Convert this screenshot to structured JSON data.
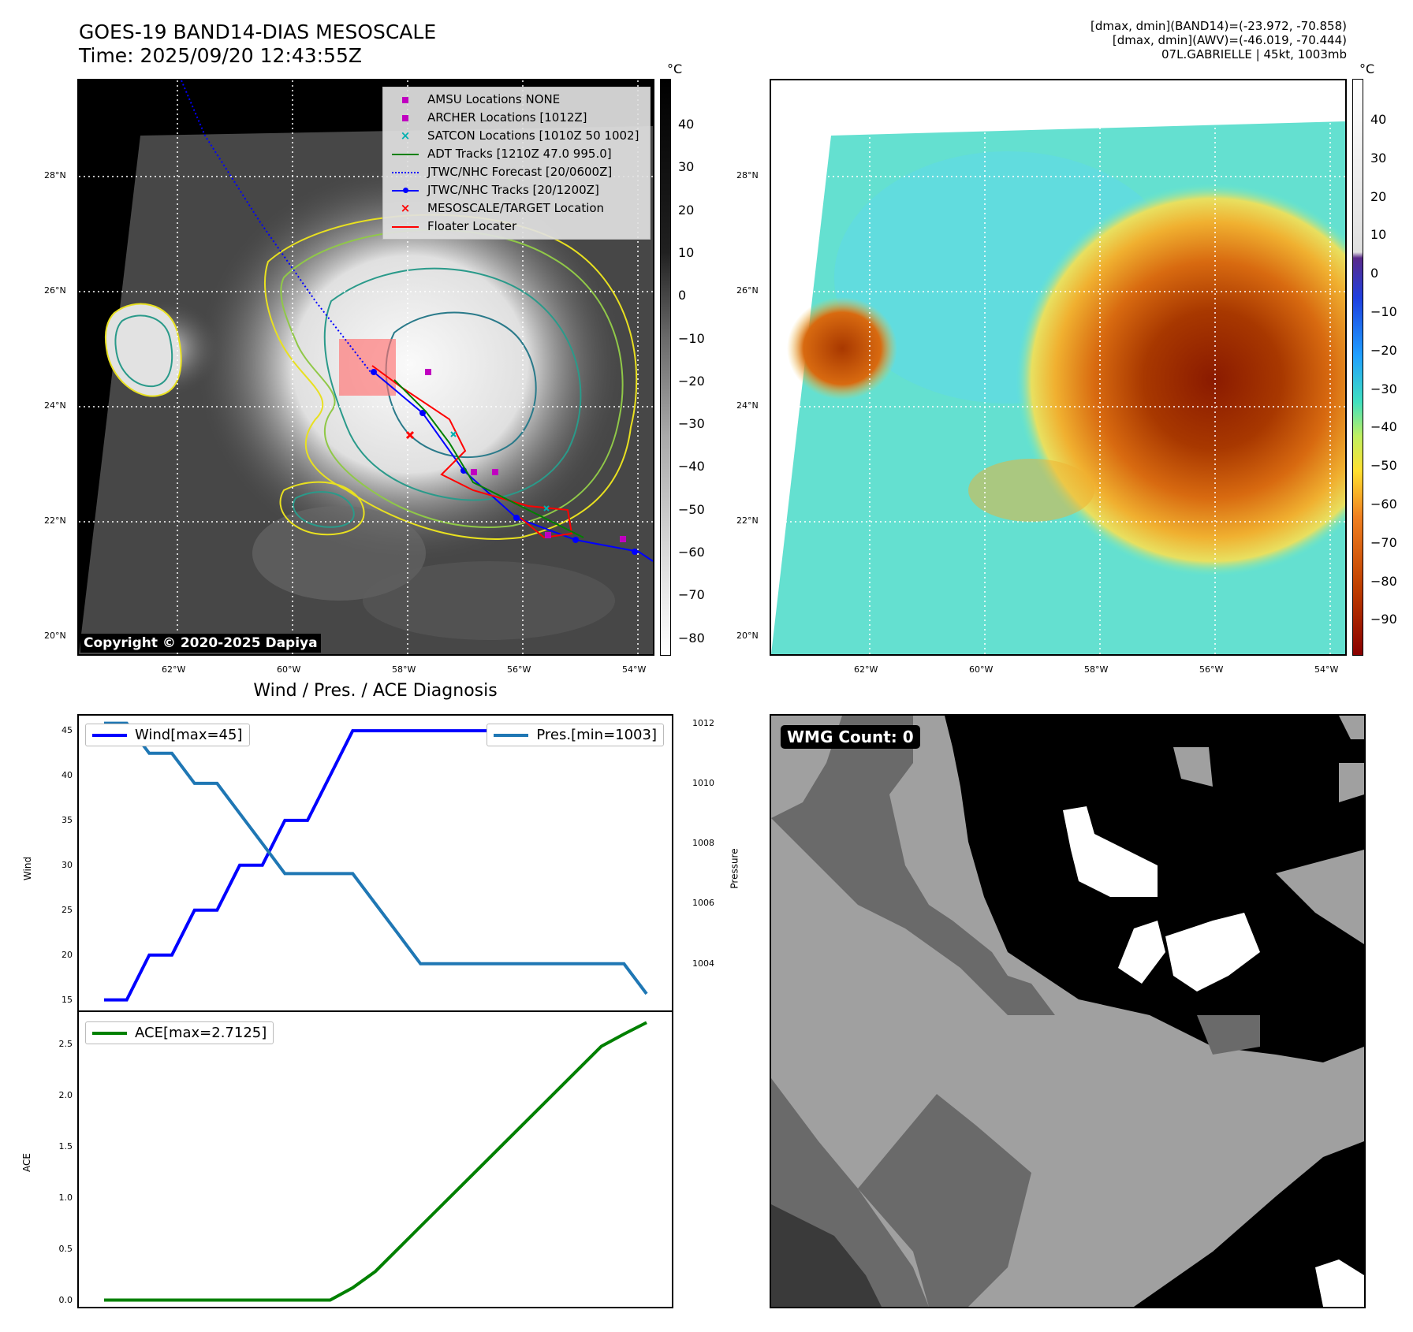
{
  "title_line1": "GOES-19 BAND14-DIAS MESOSCALE",
  "title_line2": "Time: 2025/09/20 12:43:55Z",
  "annotation": {
    "line1": "[dmax, dmin](BAND14)=(-23.972, -70.858)",
    "line2": "[dmax, dmin](AWV)=(-46.019, -70.444)",
    "line3": "07L.GABRIELLE | 45kt, 1003mb"
  },
  "colorbar_unit": "°C",
  "copyright": "Copyright © 2020-2025 Dapiya",
  "wmg_label": "WMG Count: 0",
  "diag_title": "Wind / Pres. / ACE Diagnosis",
  "map_ticks": {
    "lat": [
      "28°N",
      "26°N",
      "24°N",
      "22°N",
      "20°N"
    ],
    "lon": [
      "62°W",
      "60°W",
      "58°W",
      "56°W",
      "54°W"
    ]
  },
  "legend": [
    {
      "label": "AMSU Locations NONE",
      "symbol": "square",
      "color": "#c000c0"
    },
    {
      "label": "ARCHER Locations [1012Z]",
      "symbol": "square",
      "color": "#c000c0"
    },
    {
      "label": "SATCON Locations [1010Z 50 1002]",
      "symbol": "x",
      "color": "#00b0b0"
    },
    {
      "label": "ADT Tracks [1210Z 47.0 995.0]",
      "symbol": "line",
      "color": "#008000"
    },
    {
      "label": "JTWC/NHC Forecast [20/0600Z]",
      "symbol": "dotted",
      "color": "#0000ff"
    },
    {
      "label": "JTWC/NHC Tracks [20/1200Z]",
      "symbol": "dotline",
      "color": "#0000ff"
    },
    {
      "label": "MESOSCALE/TARGET Location",
      "symbol": "x",
      "color": "#ff0000"
    },
    {
      "label": "Floater Locater",
      "symbol": "line",
      "color": "#ff0000"
    }
  ],
  "colorbar1": {
    "ticks": [
      "40",
      "30",
      "20",
      "10",
      "0",
      "−10",
      "−20",
      "−30",
      "−40",
      "−50",
      "−60",
      "−70",
      "−80"
    ]
  },
  "colorbar2": {
    "ticks": [
      "40",
      "30",
      "20",
      "10",
      "0",
      "−10",
      "−20",
      "−30",
      "−40",
      "−50",
      "−60",
      "−70",
      "−80",
      "−90"
    ]
  },
  "chart_data": [
    {
      "type": "line",
      "title": "Wind / Pres. / ACE Diagnosis",
      "ylabel": "Wind",
      "ylabel_right": "Pressure",
      "ylim": [
        14,
        46.5
      ],
      "ylim_right": [
        1002.5,
        1012.2
      ],
      "yticks": [
        "45",
        "40",
        "35",
        "30",
        "25",
        "20",
        "15"
      ],
      "yticks_right": [
        "1012",
        "1010",
        "1008",
        "1006",
        "1004"
      ],
      "series": [
        {
          "name": "Wind[max=45]",
          "color": "#0000ff",
          "values": [
            15,
            15,
            20,
            20,
            25,
            25,
            30,
            30,
            35,
            35,
            40,
            45,
            45,
            45,
            45,
            45,
            45,
            45,
            45,
            45,
            45,
            45,
            45,
            45,
            45
          ]
        },
        {
          "name": "Pres.[min=1003]",
          "color": "#1f77b4",
          "values": [
            1012,
            1012,
            1011,
            1011,
            1010,
            1010,
            1009,
            1008,
            1007,
            1007,
            1007,
            1007,
            1006,
            1005,
            1004,
            1004,
            1004,
            1004,
            1004,
            1004,
            1004,
            1004,
            1004,
            1004,
            1003
          ]
        }
      ]
    },
    {
      "type": "line",
      "ylabel": "ACE",
      "ylim": [
        -0.05,
        2.8
      ],
      "yticks": [
        "2.5",
        "2.0",
        "1.5",
        "1.0",
        "0.5",
        "0.0"
      ],
      "series": [
        {
          "name": "ACE[max=2.7125]",
          "color": "#008000",
          "values": [
            0,
            0,
            0,
            0,
            0,
            0,
            0,
            0,
            0,
            0,
            0,
            0.12,
            0.28,
            0.5,
            0.72,
            0.94,
            1.16,
            1.38,
            1.6,
            1.82,
            2.04,
            2.26,
            2.48,
            2.6,
            2.7125
          ]
        }
      ]
    }
  ]
}
